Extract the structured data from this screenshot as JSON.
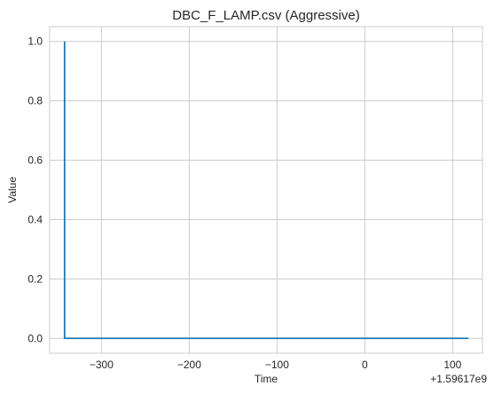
{
  "chart_data": {
    "type": "line",
    "title": "DBC_F_LAMP.csv (Aggressive)",
    "xlabel": "Time",
    "ylabel": "Value",
    "x_offset_label": "+1.59617e9",
    "x_offset": 1596170000,
    "xlim": [
      -359,
      134
    ],
    "ylim": [
      -0.05,
      1.05
    ],
    "x_ticks": [
      -300,
      -200,
      -100,
      0,
      100
    ],
    "x_tick_labels": [
      "−300",
      "−200",
      "−100",
      "0",
      "100"
    ],
    "y_ticks": [
      0.0,
      0.2,
      0.4,
      0.6,
      0.8,
      1.0
    ],
    "y_tick_labels": [
      "0.0",
      "0.2",
      "0.4",
      "0.6",
      "0.8",
      "1.0"
    ],
    "grid": true,
    "series": [
      {
        "color": "#1f77b4",
        "x": [
          -342,
          -342,
          118
        ],
        "y": [
          1.0,
          0.0,
          0.0
        ]
      }
    ]
  }
}
